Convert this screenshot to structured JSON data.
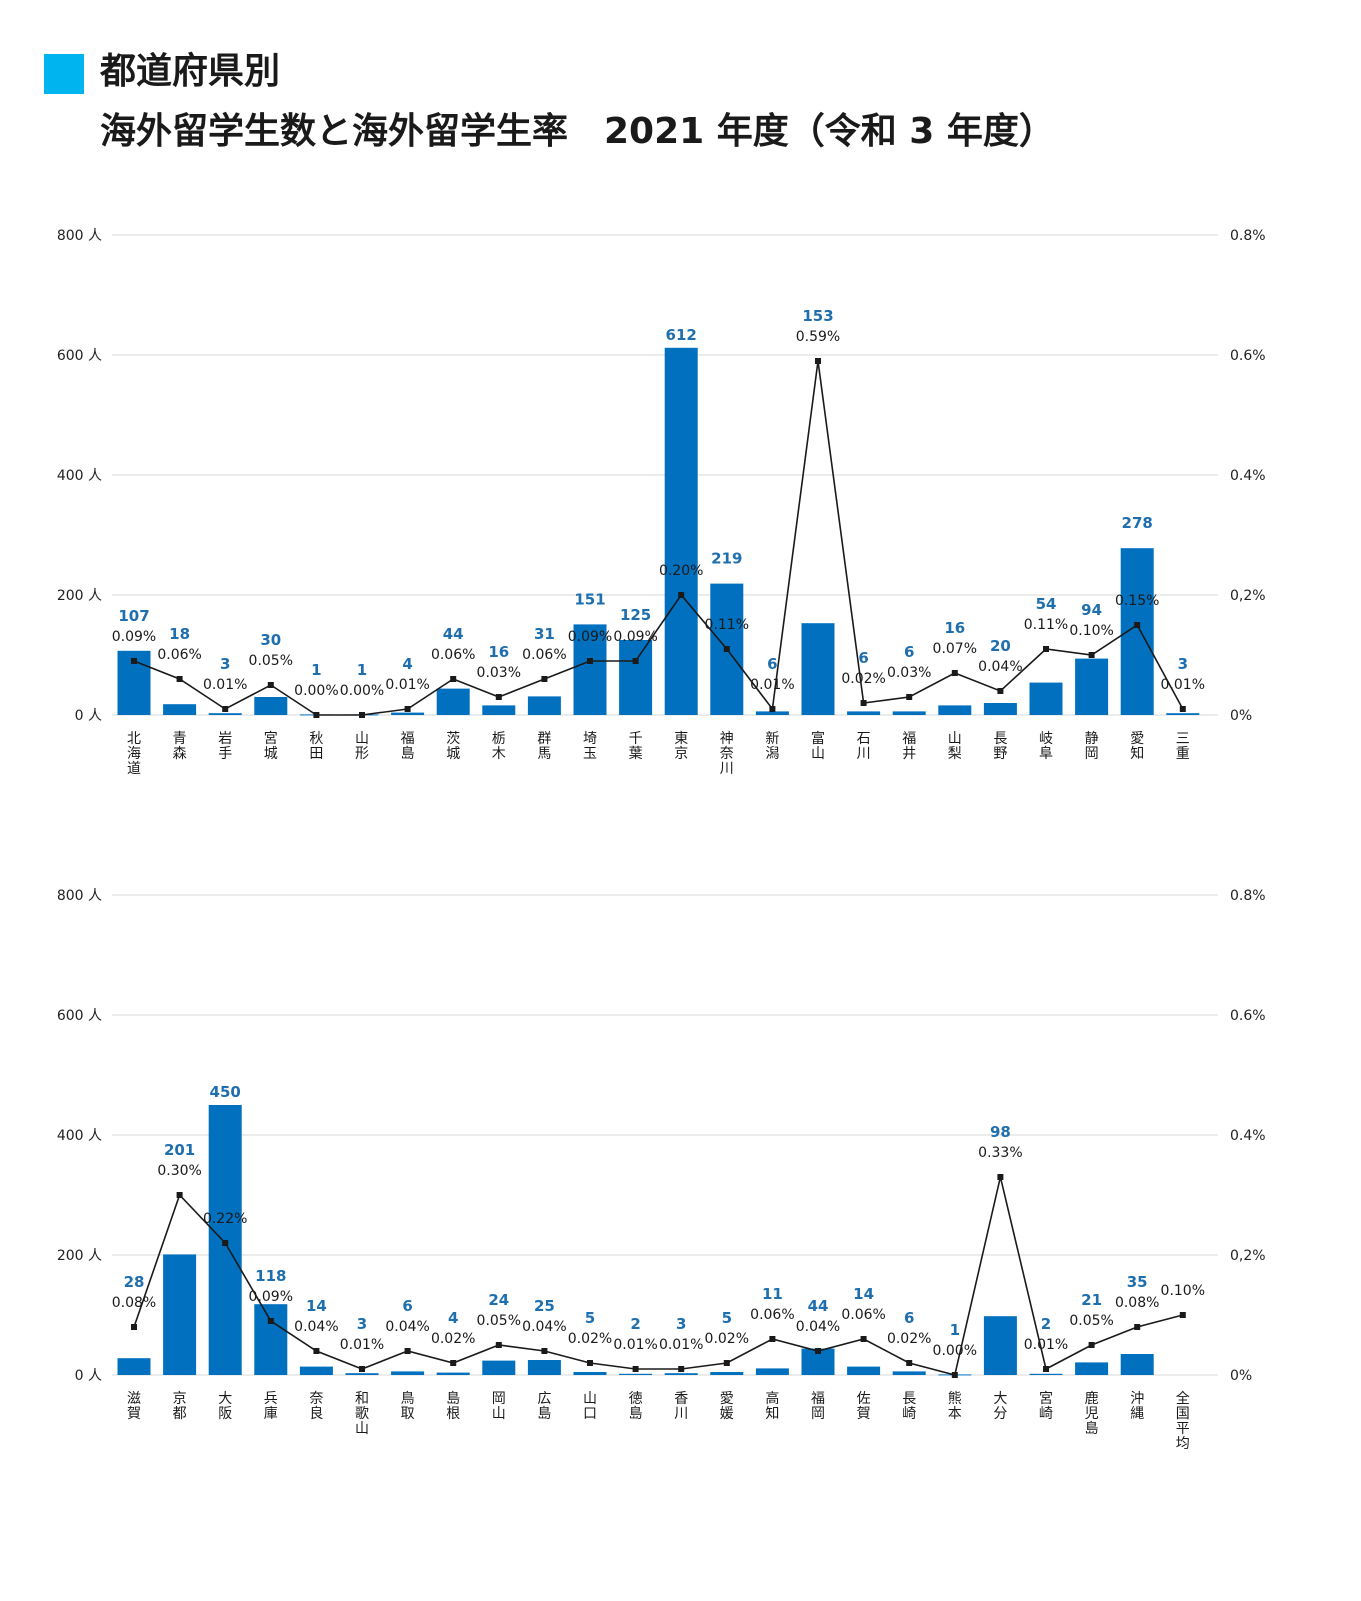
{
  "header": {
    "title_line1": "都道府県別",
    "title_line2": "海外留学生数と海外留学生率　2021 年度（令和 3 年度）"
  },
  "colors": {
    "bar": "#0070bf",
    "line": "#1a1a1a",
    "count_label": "#1f6fae",
    "grid": "#d9d9d9",
    "accent_square": "#00b4f0"
  },
  "chart_data": [
    {
      "type": "bar",
      "y_left": {
        "ylim": [
          0,
          800
        ],
        "ticks": [
          "0 人",
          "200 人",
          "400 人",
          "600 人",
          "800 人"
        ]
      },
      "y_right": {
        "ylim": [
          0,
          0.8
        ],
        "ticks": [
          "0%",
          "0,2%",
          "0.4%",
          "0.6%",
          "0.8%"
        ]
      },
      "grid": true,
      "categories": [
        "北海道",
        "青森",
        "岩手",
        "宮城",
        "秋田",
        "山形",
        "福島",
        "茨城",
        "栃木",
        "群馬",
        "埼玉",
        "千葉",
        "東京",
        "神奈川",
        "新潟",
        "富山",
        "石川",
        "福井",
        "山梨",
        "長野",
        "岐阜",
        "静岡",
        "愛知",
        "三重"
      ],
      "series": [
        {
          "values": [
            107,
            18,
            3,
            30,
            1,
            1,
            4,
            44,
            16,
            31,
            151,
            125,
            612,
            219,
            6,
            153,
            6,
            6,
            16,
            20,
            54,
            94,
            278,
            3
          ]
        },
        {
          "values": [
            0.09,
            0.06,
            0.01,
            0.05,
            0.0,
            0.0,
            0.01,
            0.06,
            0.03,
            0.06,
            0.09,
            0.09,
            0.2,
            0.11,
            0.01,
            0.59,
            0.02,
            0.03,
            0.07,
            0.04,
            0.11,
            0.1,
            0.15,
            0.01
          ]
        }
      ],
      "count_labels": [
        "107",
        "18",
        "3",
        "30",
        "1",
        "1",
        "4",
        "44",
        "16",
        "31",
        "151",
        "125",
        "612",
        "219",
        "6",
        "153",
        "6",
        "6",
        "16",
        "20",
        "54",
        "94",
        "278",
        "3"
      ],
      "rate_labels": [
        "0.09%",
        "0.06%",
        "0.01%",
        "0.05%",
        "0.00%",
        "0.00%",
        "0.01%",
        "0.06%",
        "0.03%",
        "0.06%",
        "0.09%",
        "0.09%",
        "0.20%",
        "0.11%",
        "0.01%",
        "0.59%",
        "0.02%",
        "0.03%",
        "0.07%",
        "0.04%",
        "0.11%",
        "0.10%",
        "0.15%",
        "0.01%"
      ]
    },
    {
      "type": "bar",
      "y_left": {
        "ylim": [
          0,
          800
        ],
        "ticks": [
          "0 人",
          "200 人",
          "400 人",
          "600 人",
          "800 人"
        ]
      },
      "y_right": {
        "ylim": [
          0,
          0.8
        ],
        "ticks": [
          "0%",
          "0,2%",
          "0.4%",
          "0.6%",
          "0.8%"
        ]
      },
      "grid": true,
      "categories": [
        "滋賀",
        "京都",
        "大阪",
        "兵庫",
        "奈良",
        "和歌山",
        "鳥取",
        "島根",
        "岡山",
        "広島",
        "山口",
        "徳島",
        "香川",
        "愛媛",
        "高知",
        "福岡",
        "佐賀",
        "長崎",
        "熊本",
        "大分",
        "宮崎",
        "鹿児島",
        "沖縄",
        "全国平均"
      ],
      "series": [
        {
          "values": [
            28,
            201,
            450,
            118,
            14,
            3,
            6,
            4,
            24,
            25,
            5,
            2,
            3,
            5,
            11,
            44,
            14,
            6,
            1,
            98,
            2,
            21,
            35,
            null
          ]
        },
        {
          "values": [
            0.08,
            0.3,
            0.22,
            0.09,
            0.04,
            0.01,
            0.04,
            0.02,
            0.05,
            0.04,
            0.02,
            0.01,
            0.01,
            0.02,
            0.06,
            0.04,
            0.06,
            0.02,
            0.0,
            0.33,
            0.01,
            0.05,
            0.08,
            0.1
          ]
        }
      ],
      "count_labels": [
        "28",
        "201",
        "450",
        "118",
        "14",
        "3",
        "6",
        "4",
        "24",
        "25",
        "5",
        "2",
        "3",
        "5",
        "11",
        "44",
        "14",
        "6",
        "1",
        "98",
        "2",
        "21",
        "35",
        ""
      ],
      "rate_labels": [
        "0.08%",
        "0.30%",
        "0.22%",
        "0.09%",
        "0.04%",
        "0.01%",
        "0.04%",
        "0.02%",
        "0.05%",
        "0.04%",
        "0.02%",
        "0.01%",
        "0.01%",
        "0.02%",
        "0.06%",
        "0.04%",
        "0.06%",
        "0.02%",
        "0.00%",
        "0.33%",
        "0.01%",
        "0.05%",
        "0.08%",
        "0.10%"
      ]
    }
  ]
}
